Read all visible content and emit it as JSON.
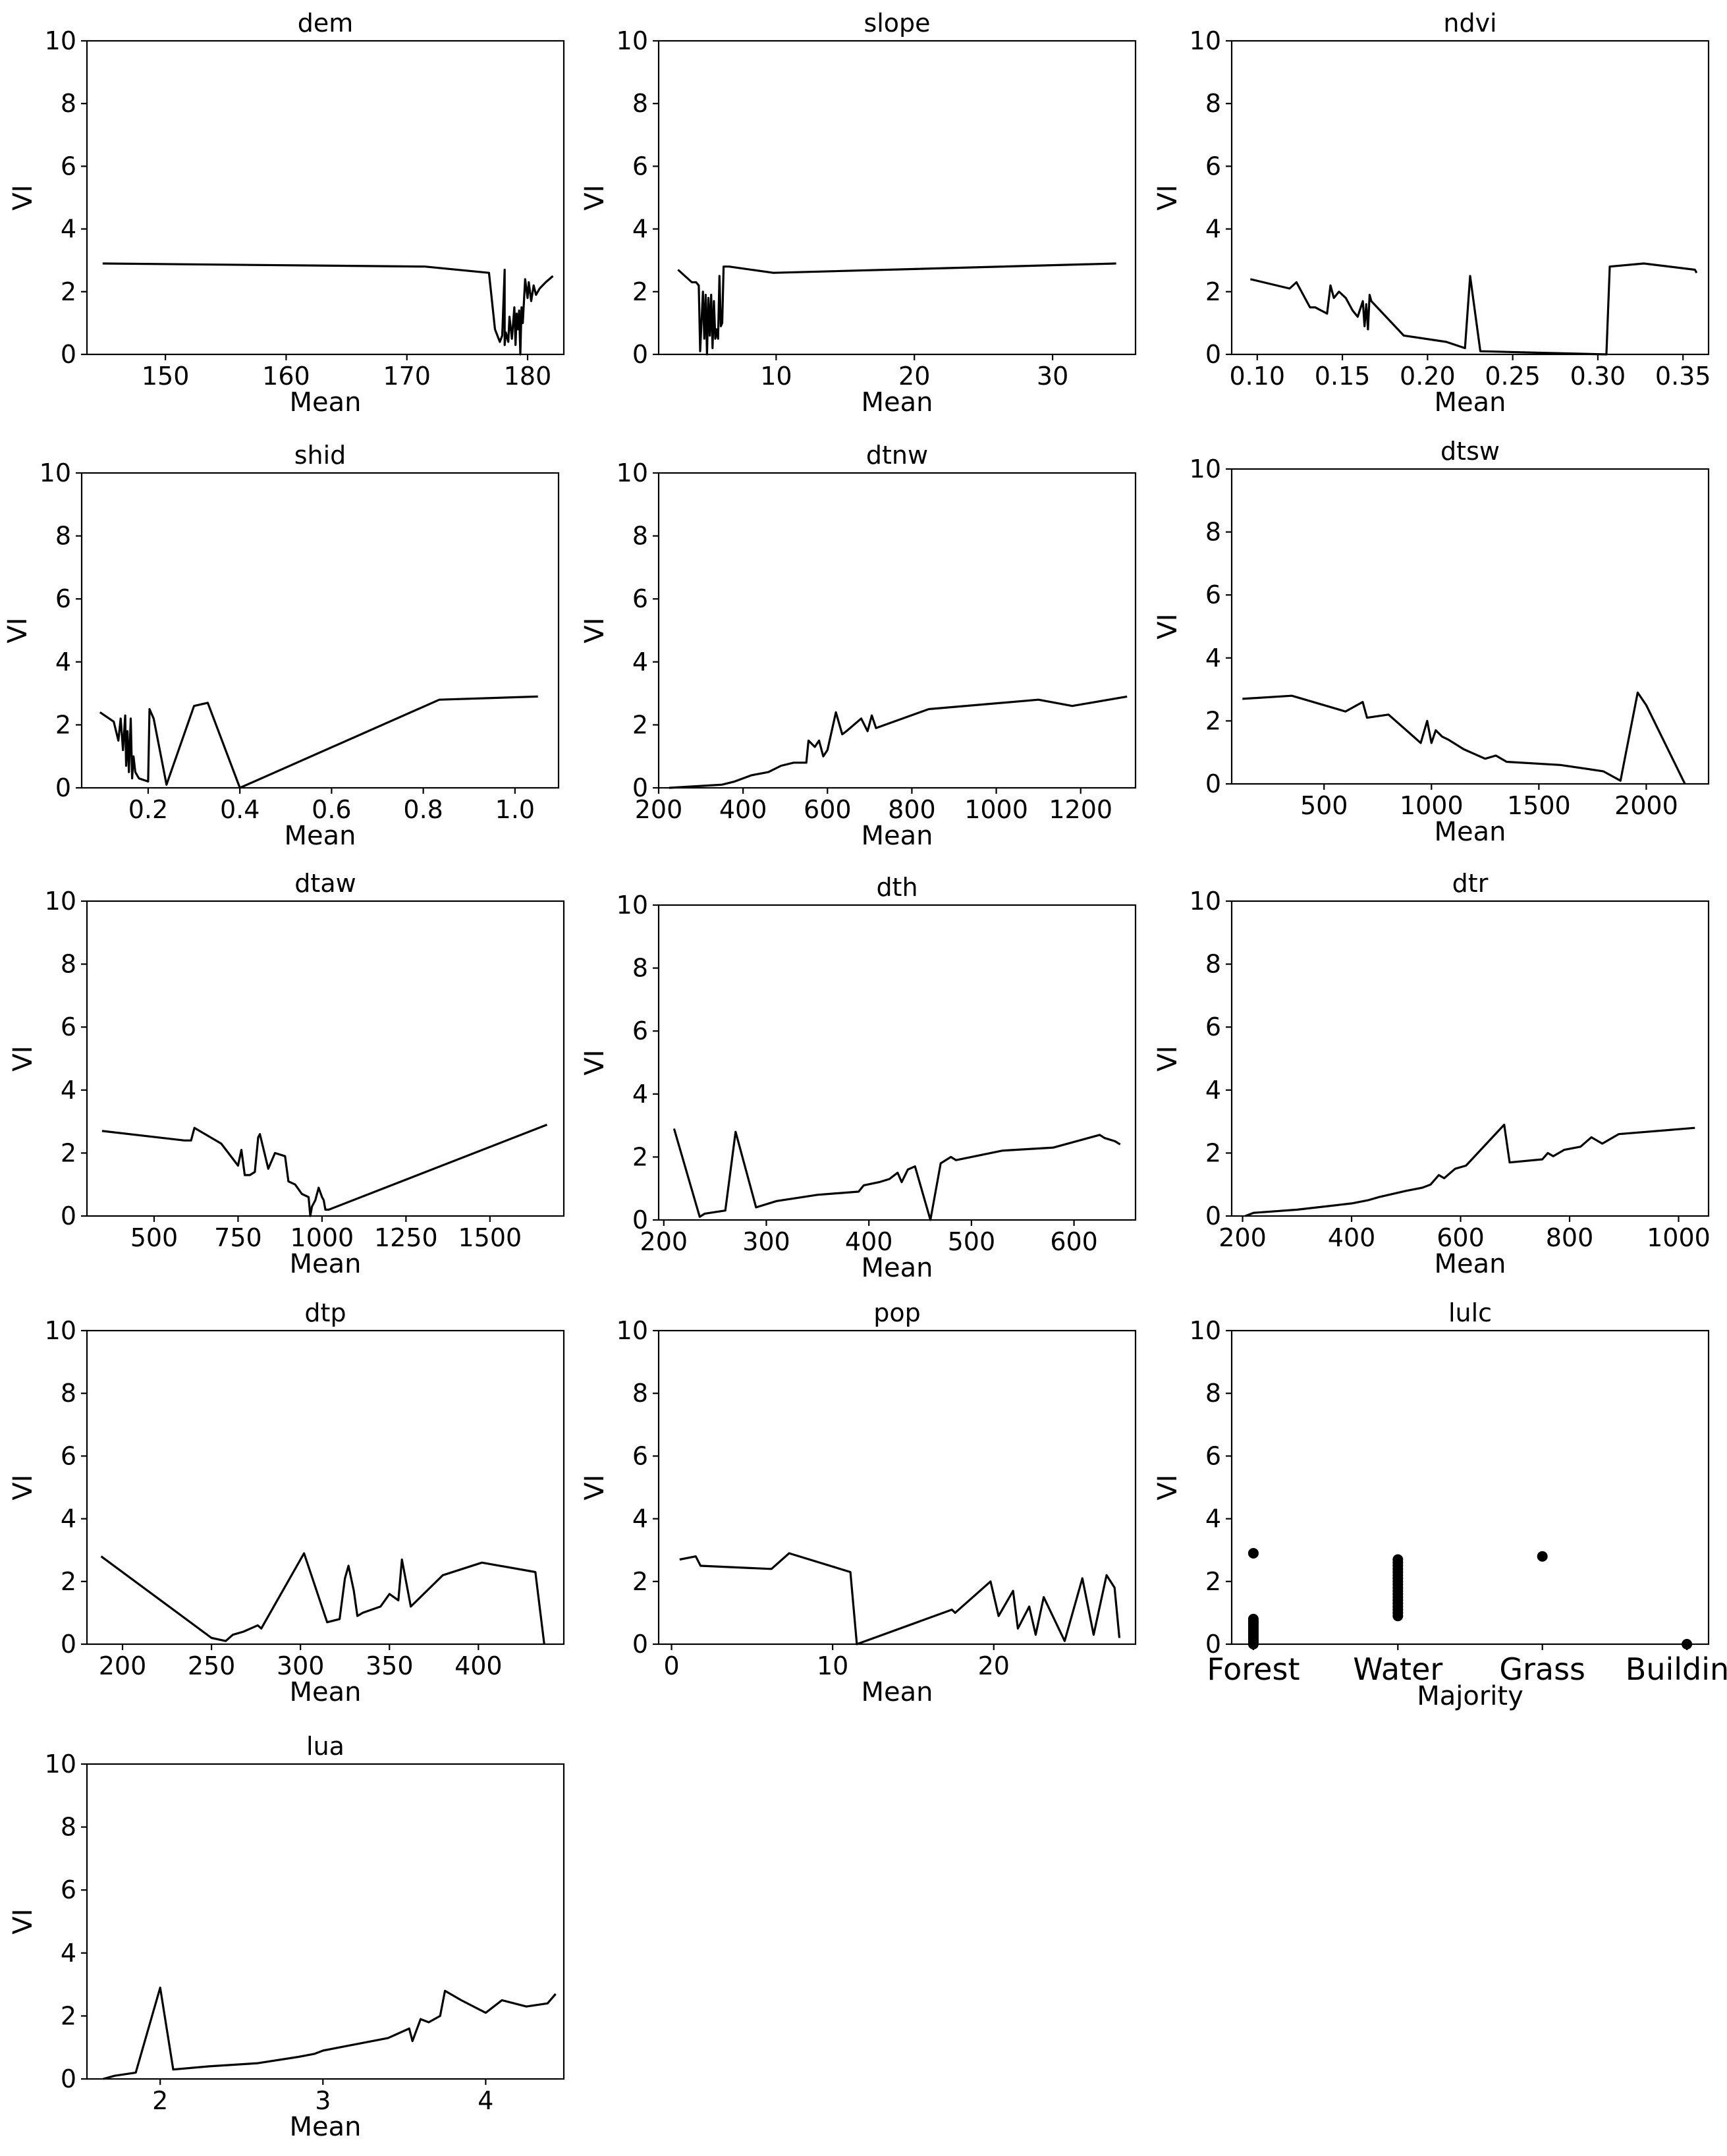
{
  "figure": {
    "layout": "grid of 13 line/scatter panels",
    "columns": 3,
    "rows": 5
  },
  "chart_data": [
    {
      "type": "line",
      "title": "dem",
      "xlabel": "Mean",
      "ylabel": "VI",
      "xlim": [
        143.5,
        183
      ],
      "ylim": [
        0,
        10
      ],
      "xticks": [
        150,
        160,
        170,
        180
      ],
      "xtick_labels": [
        "150",
        "160",
        "170",
        "180"
      ],
      "yticks": [
        0,
        2,
        4,
        6,
        8,
        10
      ],
      "x": [
        144.8,
        171.5,
        176.8,
        177.3,
        177.7,
        177.9,
        178.1,
        178.1,
        178.2,
        178.4,
        178.5,
        178.7,
        178.9,
        179.0,
        179.1,
        179.2,
        179.3,
        179.4,
        179.5,
        179.6,
        179.8,
        180.0,
        180.1,
        180.3,
        180.5,
        180.7,
        181.0,
        181.5,
        182.1
      ],
      "y": [
        2.9,
        2.8,
        2.6,
        0.8,
        0.4,
        0.6,
        2.7,
        0.3,
        0.7,
        0.4,
        1.2,
        0.5,
        1.5,
        0.3,
        1.3,
        0.8,
        1.4,
        0.0,
        1.5,
        1.0,
        2.4,
        1.8,
        2.3,
        1.7,
        2.2,
        1.9,
        2.1,
        2.3,
        2.5
      ]
    },
    {
      "type": "line",
      "title": "slope",
      "xlabel": "Mean",
      "ylabel": "VI",
      "xlim": [
        1.5,
        36
      ],
      "ylim": [
        0,
        10
      ],
      "xticks": [
        10,
        20,
        30
      ],
      "xtick_labels": [
        "10",
        "20",
        "30"
      ],
      "yticks": [
        0,
        2,
        4,
        6,
        8,
        10
      ],
      "x": [
        2.9,
        3.9,
        4.2,
        4.4,
        4.5,
        4.7,
        4.8,
        4.9,
        5.0,
        5.1,
        5.2,
        5.3,
        5.4,
        5.5,
        5.6,
        5.7,
        5.8,
        5.9,
        6.0,
        6.1,
        6.2,
        6.4,
        6.6,
        9.8,
        34.6
      ],
      "y": [
        2.7,
        2.3,
        2.3,
        2.2,
        0.1,
        2.0,
        0.5,
        1.9,
        0.0,
        1.8,
        0.6,
        1.9,
        0.2,
        1.7,
        0.5,
        0.8,
        0.5,
        2.5,
        0.9,
        1.0,
        2.8,
        2.8,
        2.8,
        2.6,
        2.9
      ]
    },
    {
      "type": "line",
      "title": "ndvi",
      "xlabel": "Mean",
      "ylabel": "VI",
      "xlim": [
        0.085,
        0.365
      ],
      "ylim": [
        0,
        10
      ],
      "xticks": [
        0.1,
        0.15,
        0.2,
        0.25,
        0.3,
        0.35
      ],
      "xtick_labels": [
        "0.10",
        "0.15",
        "0.20",
        "0.25",
        "0.30",
        "0.35"
      ],
      "yticks": [
        0,
        2,
        4,
        6,
        8,
        10
      ],
      "x": [
        0.096,
        0.119,
        0.123,
        0.131,
        0.134,
        0.141,
        0.143,
        0.145,
        0.148,
        0.152,
        0.156,
        0.159,
        0.162,
        0.163,
        0.164,
        0.165,
        0.166,
        0.167,
        0.186,
        0.211,
        0.222,
        0.225,
        0.231,
        0.305,
        0.307,
        0.327,
        0.357,
        0.358
      ],
      "y": [
        2.4,
        2.1,
        2.3,
        1.5,
        1.5,
        1.3,
        2.2,
        1.8,
        2.0,
        1.8,
        1.4,
        1.2,
        1.7,
        0.9,
        1.6,
        0.8,
        1.9,
        1.7,
        0.6,
        0.4,
        0.2,
        2.5,
        0.1,
        0.0,
        2.8,
        2.9,
        2.7,
        2.6
      ]
    },
    {
      "type": "line",
      "title": "shid",
      "xlabel": "Mean",
      "ylabel": "VI",
      "xlim": [
        0.055,
        1.095
      ],
      "ylim": [
        0,
        10
      ],
      "xticks": [
        0.2,
        0.4,
        0.6,
        0.8,
        1.0
      ],
      "xtick_labels": [
        "0.2",
        "0.4",
        "0.6",
        "0.8",
        "1.0"
      ],
      "yticks": [
        0,
        2,
        4,
        6,
        8,
        10
      ],
      "x": [
        0.095,
        0.125,
        0.135,
        0.14,
        0.145,
        0.15,
        0.152,
        0.155,
        0.158,
        0.162,
        0.165,
        0.168,
        0.172,
        0.176,
        0.18,
        0.2,
        0.203,
        0.212,
        0.24,
        0.3,
        0.33,
        0.4,
        0.835,
        1.05
      ],
      "y": [
        2.4,
        2.1,
        1.5,
        2.2,
        1.2,
        2.3,
        0.7,
        1.8,
        0.5,
        2.2,
        0.3,
        1.0,
        0.5,
        0.4,
        0.3,
        0.2,
        2.5,
        2.2,
        0.1,
        2.6,
        2.7,
        0.0,
        2.8,
        2.9
      ]
    },
    {
      "type": "line",
      "title": "dtnw",
      "xlabel": "Mean",
      "ylabel": "VI",
      "xlim": [
        200,
        1330
      ],
      "ylim": [
        0,
        10
      ],
      "xticks": [
        200,
        400,
        600,
        800,
        1000,
        1200
      ],
      "xtick_labels": [
        "200",
        "400",
        "600",
        "800",
        "1000",
        "1200"
      ],
      "yticks": [
        0,
        2,
        4,
        6,
        8,
        10
      ],
      "x": [
        225,
        350,
        380,
        420,
        460,
        490,
        520,
        550,
        555,
        570,
        580,
        590,
        600,
        620,
        635,
        645,
        680,
        695,
        705,
        715,
        840,
        1100,
        1180,
        1310
      ],
      "y": [
        0.0,
        0.1,
        0.2,
        0.4,
        0.5,
        0.7,
        0.8,
        0.8,
        1.5,
        1.3,
        1.5,
        1.0,
        1.2,
        2.4,
        1.7,
        1.8,
        2.2,
        1.8,
        2.3,
        1.9,
        2.5,
        2.8,
        2.6,
        2.9
      ]
    },
    {
      "type": "line",
      "title": "dtsw",
      "xlabel": "Mean",
      "ylabel": "VI",
      "xlim": [
        70,
        2290
      ],
      "ylim": [
        0,
        10
      ],
      "xticks": [
        500,
        1000,
        1500,
        2000
      ],
      "xtick_labels": [
        "500",
        "1000",
        "1500",
        "2000"
      ],
      "yticks": [
        0,
        2,
        4,
        6,
        8,
        10
      ],
      "x": [
        120,
        350,
        600,
        680,
        700,
        800,
        900,
        950,
        980,
        1000,
        1020,
        1050,
        1080,
        1150,
        1250,
        1300,
        1350,
        1600,
        1800,
        1880,
        1960,
        2000,
        2180
      ],
      "y": [
        2.7,
        2.8,
        2.3,
        2.6,
        2.1,
        2.2,
        1.6,
        1.3,
        2.0,
        1.3,
        1.7,
        1.5,
        1.4,
        1.1,
        0.8,
        0.9,
        0.7,
        0.6,
        0.4,
        0.1,
        2.9,
        2.5,
        0.0
      ]
    },
    {
      "type": "line",
      "title": "dtaw",
      "xlabel": "Mean",
      "ylabel": "VI",
      "xlim": [
        300,
        1720
      ],
      "ylim": [
        0,
        10
      ],
      "xticks": [
        500,
        750,
        1000,
        1250,
        1500
      ],
      "xtick_labels": [
        "500",
        "750",
        "1000",
        "1250",
        "1500"
      ],
      "yticks": [
        0,
        2,
        4,
        6,
        8,
        10
      ],
      "x": [
        345,
        590,
        610,
        620,
        700,
        750,
        760,
        770,
        785,
        800,
        810,
        815,
        840,
        860,
        890,
        900,
        920,
        940,
        960,
        965,
        970,
        980,
        990,
        1000,
        1005,
        1010,
        1020,
        1670
      ],
      "y": [
        2.7,
        2.4,
        2.4,
        2.8,
        2.3,
        1.6,
        2.1,
        1.3,
        1.3,
        1.4,
        2.5,
        2.6,
        1.5,
        2.0,
        1.9,
        1.1,
        1.0,
        0.7,
        0.6,
        0.0,
        0.3,
        0.5,
        0.9,
        0.6,
        0.5,
        0.2,
        0.2,
        2.9
      ]
    },
    {
      "type": "line",
      "title": "dth",
      "xlabel": "Mean",
      "ylabel": "VI",
      "xlim": [
        195,
        660
      ],
      "ylim": [
        0,
        10
      ],
      "xticks": [
        200,
        300,
        400,
        500,
        600
      ],
      "xtick_labels": [
        "200",
        "300",
        "400",
        "500",
        "600"
      ],
      "yticks": [
        0,
        2,
        4,
        6,
        8,
        10
      ],
      "x": [
        210,
        235,
        240,
        260,
        270,
        290,
        310,
        350,
        390,
        395,
        410,
        420,
        428,
        432,
        438,
        445,
        460,
        470,
        480,
        485,
        530,
        580,
        625,
        630,
        640,
        645
      ],
      "y": [
        2.9,
        0.1,
        0.2,
        0.3,
        2.8,
        0.4,
        0.6,
        0.8,
        0.9,
        1.1,
        1.2,
        1.3,
        1.5,
        1.2,
        1.6,
        1.7,
        0.0,
        1.8,
        2.0,
        1.9,
        2.2,
        2.3,
        2.7,
        2.6,
        2.5,
        2.4
      ]
    },
    {
      "type": "line",
      "title": "dtr",
      "xlabel": "Mean",
      "ylabel": "VI",
      "xlim": [
        180,
        1055
      ],
      "ylim": [
        0,
        10
      ],
      "xticks": [
        200,
        400,
        600,
        800,
        1000
      ],
      "xtick_labels": [
        "200",
        "400",
        "600",
        "800",
        "1000"
      ],
      "yticks": [
        0,
        2,
        4,
        6,
        8,
        10
      ],
      "x": [
        205,
        220,
        300,
        400,
        430,
        450,
        500,
        530,
        545,
        560,
        570,
        590,
        610,
        680,
        690,
        750,
        760,
        770,
        790,
        820,
        840,
        860,
        890,
        1030
      ],
      "y": [
        0.0,
        0.1,
        0.2,
        0.4,
        0.5,
        0.6,
        0.8,
        0.9,
        1.0,
        1.3,
        1.2,
        1.5,
        1.6,
        2.9,
        1.7,
        1.8,
        2.0,
        1.9,
        2.1,
        2.2,
        2.5,
        2.3,
        2.6,
        2.8
      ]
    },
    {
      "type": "line",
      "title": "dtp",
      "xlabel": "Mean",
      "ylabel": "VI",
      "xlim": [
        180,
        448
      ],
      "ylim": [
        0,
        10
      ],
      "xticks": [
        200,
        250,
        300,
        350,
        400
      ],
      "xtick_labels": [
        "200",
        "250",
        "300",
        "350",
        "400"
      ],
      "yticks": [
        0,
        2,
        4,
        6,
        8,
        10
      ],
      "x": [
        188,
        250,
        258,
        262,
        268,
        272,
        276,
        278,
        302,
        315,
        322,
        325,
        327,
        330,
        332,
        335,
        345,
        350,
        355,
        357,
        362,
        380,
        402,
        432,
        437
      ],
      "y": [
        2.8,
        0.2,
        0.1,
        0.3,
        0.4,
        0.5,
        0.6,
        0.5,
        2.9,
        0.7,
        0.8,
        2.1,
        2.5,
        1.7,
        0.9,
        1.0,
        1.2,
        1.6,
        1.4,
        2.7,
        1.2,
        2.2,
        2.6,
        2.3,
        0.0
      ]
    },
    {
      "type": "line",
      "title": "pop",
      "xlabel": "Mean",
      "ylabel": "VI",
      "xlim": [
        -0.8,
        28.8
      ],
      "ylim": [
        0,
        10
      ],
      "xticks": [
        0,
        10,
        20
      ],
      "xtick_labels": [
        "0",
        "10",
        "20"
      ],
      "yticks": [
        0,
        2,
        4,
        6,
        8,
        10
      ],
      "x": [
        0.5,
        1.5,
        1.8,
        6.2,
        7.3,
        11.1,
        11.5,
        17.4,
        17.6,
        19.8,
        20.3,
        21.2,
        21.5,
        22.2,
        22.6,
        23.1,
        24.4,
        25.5,
        26.2,
        27.0,
        27.5,
        27.8
      ],
      "y": [
        2.7,
        2.8,
        2.5,
        2.4,
        2.9,
        2.3,
        0.0,
        1.1,
        1.0,
        2.0,
        0.9,
        1.7,
        0.5,
        1.2,
        0.3,
        1.5,
        0.1,
        2.1,
        0.3,
        2.2,
        1.8,
        0.2
      ]
    },
    {
      "type": "scatter",
      "title": "lulc",
      "xlabel": "Majority",
      "ylabel": "VI",
      "xlim": [
        -0.15,
        3.15
      ],
      "ylim": [
        0,
        10
      ],
      "categories": [
        "Forest",
        "Water",
        "Grass",
        "Building"
      ],
      "yticks": [
        0,
        2,
        4,
        6,
        8,
        10
      ],
      "points": [
        {
          "category": "Forest",
          "values": [
            2.9,
            0.8,
            0.75,
            0.7,
            0.65,
            0.6,
            0.55,
            0.5,
            0.45,
            0.4,
            0.35,
            0.3,
            0.25,
            0.2,
            0.15,
            0.1,
            0.05,
            0.0
          ]
        },
        {
          "category": "Water",
          "values": [
            2.7,
            2.6,
            2.5,
            2.4,
            2.3,
            2.2,
            2.1,
            2.0,
            1.9,
            1.8,
            1.7,
            1.6,
            1.5,
            1.4,
            1.3,
            1.2,
            1.1,
            1.0,
            0.9
          ]
        },
        {
          "category": "Grass",
          "values": [
            2.8
          ]
        },
        {
          "category": "Building",
          "values": [
            0.0
          ]
        }
      ]
    },
    {
      "type": "line",
      "title": "lua",
      "xlabel": "Mean",
      "ylabel": "VI",
      "xlim": [
        1.55,
        4.48
      ],
      "ylim": [
        0,
        10
      ],
      "xticks": [
        2,
        3,
        4
      ],
      "xtick_labels": [
        "2",
        "3",
        "4"
      ],
      "yticks": [
        0,
        2,
        4,
        6,
        8,
        10
      ],
      "x": [
        1.65,
        1.72,
        1.85,
        2.0,
        2.08,
        2.3,
        2.6,
        2.85,
        2.95,
        3.0,
        3.1,
        3.2,
        3.4,
        3.53,
        3.55,
        3.6,
        3.65,
        3.72,
        3.75,
        3.85,
        4.0,
        4.1,
        4.25,
        4.38,
        4.43
      ],
      "y": [
        0.0,
        0.1,
        0.2,
        2.9,
        0.3,
        0.4,
        0.5,
        0.7,
        0.8,
        0.9,
        1.0,
        1.1,
        1.3,
        1.6,
        1.2,
        1.9,
        1.8,
        2.0,
        2.8,
        2.5,
        2.1,
        2.5,
        2.3,
        2.4,
        2.7
      ]
    }
  ]
}
